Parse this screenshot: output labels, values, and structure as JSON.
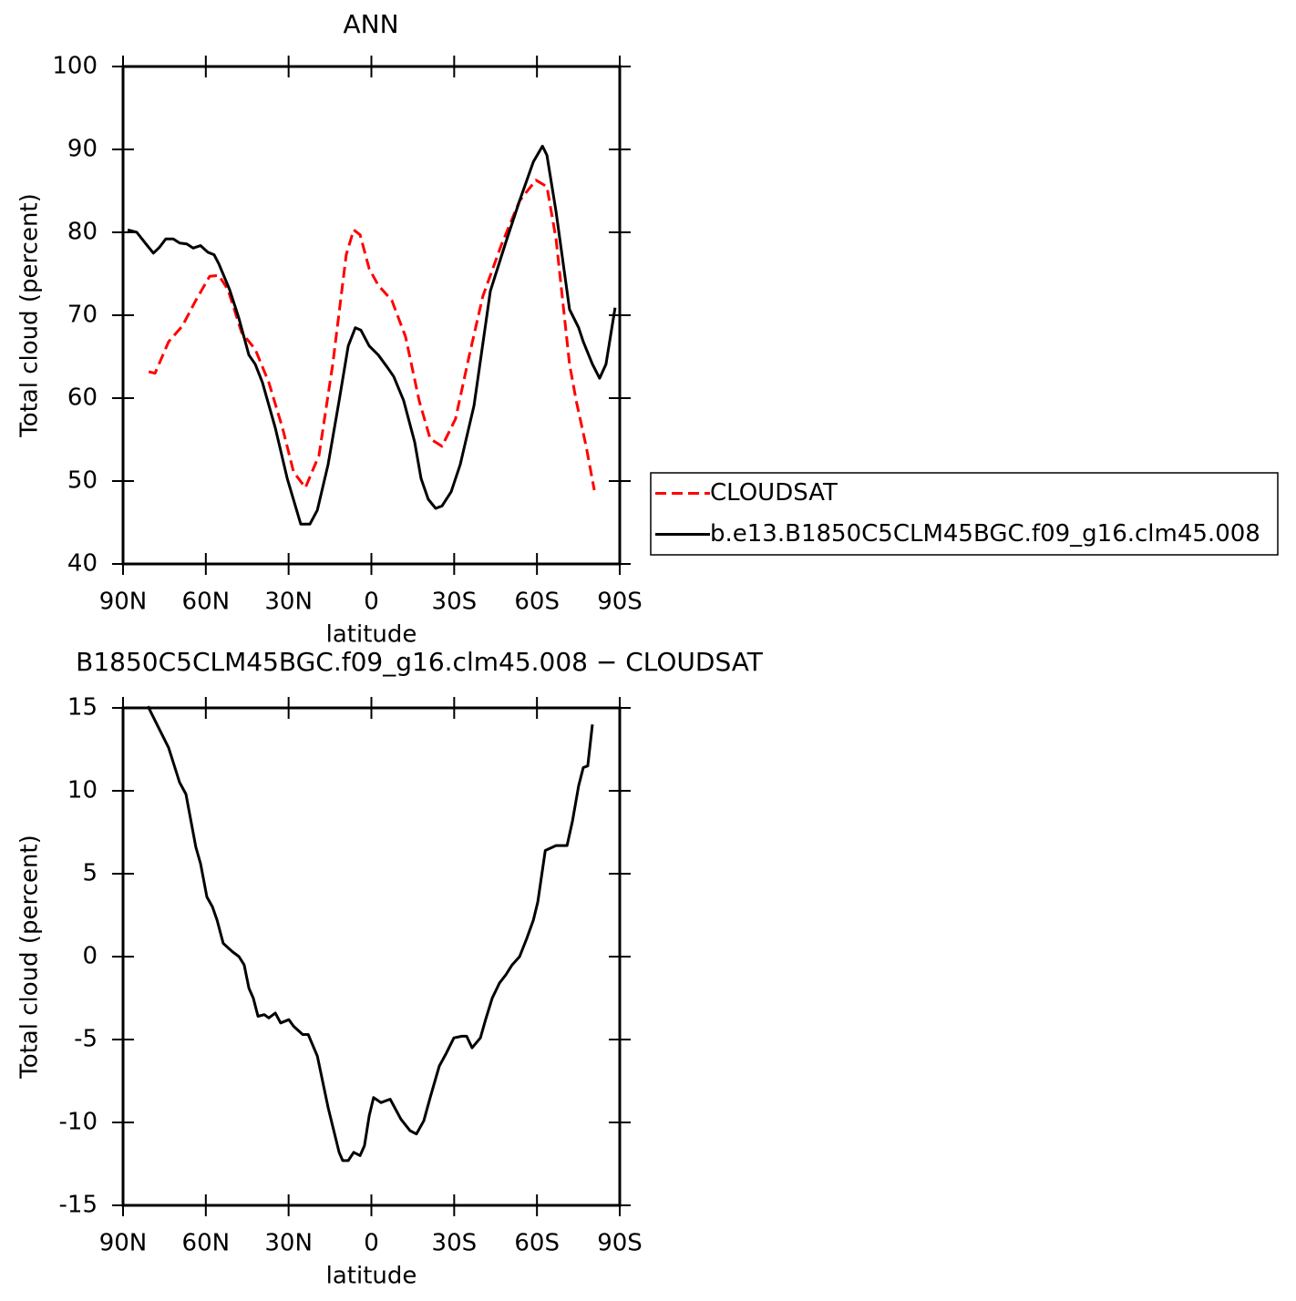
{
  "chart_data": [
    {
      "type": "line",
      "title": "ANN",
      "xlabel": "latitude",
      "ylabel": "Total cloud (percent)",
      "xlim": [
        90,
        -90
      ],
      "ylim": [
        40,
        100
      ],
      "xticks": [
        {
          "value": 90,
          "label": "90N"
        },
        {
          "value": 60,
          "label": "60N"
        },
        {
          "value": 30,
          "label": "30N"
        },
        0,
        {
          "value": -30,
          "label": "30S"
        },
        {
          "value": -60,
          "label": "60S"
        },
        {
          "value": -90,
          "label": "90S"
        }
      ],
      "yticks": [
        40,
        50,
        60,
        70,
        80,
        90,
        100
      ],
      "grid": false,
      "legend": "right",
      "series": [
        {
          "name": "CLOUDSAT",
          "color": "#ff0000",
          "style": "dashed",
          "x": [
            80.7,
            78.4,
            73.5,
            68.5,
            63.6,
            58.6,
            55.3,
            52,
            47,
            42.1,
            37.2,
            32.2,
            28.2,
            23.9,
            19,
            14,
            9.1,
            6.4,
            4.1,
            0.8,
            -2.5,
            -7.4,
            -12.4,
            -17.3,
            -21.3,
            -25.6,
            -30.5,
            -35.5,
            -40.4,
            -47,
            -53.7,
            -59.6,
            -63.6,
            -66.9,
            -71.8,
            -74.2,
            -77.8,
            -80.8
          ],
          "values": [
            63.2,
            63,
            66.8,
            68.7,
            71.8,
            74.7,
            74.8,
            73.1,
            67.9,
            65.9,
            61.9,
            56.4,
            51.1,
            49.2,
            53.1,
            64.1,
            77.3,
            80.3,
            79.7,
            75.6,
            73.6,
            71.8,
            67.4,
            59.7,
            55.1,
            54.2,
            57.5,
            65.2,
            72.3,
            78.4,
            83.8,
            86.3,
            85.5,
            79.2,
            64.1,
            59.7,
            54.2,
            48.9
          ]
        },
        {
          "name": "b.e13.B1850C5CLM45BGC.f09_g16.clm45.008",
          "color": "#000000",
          "style": "solid",
          "x": [
            88.3,
            85,
            81.7,
            79,
            76.8,
            74.5,
            71.8,
            69.5,
            66.9,
            64.6,
            61.9,
            59.3,
            57,
            55.3,
            51.4,
            48,
            44.4,
            42.1,
            39.5,
            34.8,
            30.5,
            25.6,
            22.3,
            19.6,
            15.7,
            11.7,
            8.4,
            5.8,
            3.8,
            0.8,
            -2.5,
            -5.8,
            -8.1,
            -11.7,
            -15.7,
            -18,
            -20.6,
            -23.3,
            -25.6,
            -28.9,
            -32.2,
            -37.2,
            -43.1,
            -48.8,
            -53.7,
            -58.7,
            -62,
            -63.6,
            -66.9,
            -71.8,
            -75.1,
            -76.8,
            -80.1,
            -82.7,
            -85,
            -88.3
          ],
          "values": [
            80.3,
            80,
            78.6,
            77.5,
            78.2,
            79.2,
            79.2,
            78.7,
            78.6,
            78.1,
            78.4,
            77.6,
            77.3,
            76.2,
            73.1,
            69.6,
            65.2,
            64.1,
            61.9,
            56.4,
            50.3,
            44.8,
            44.8,
            46.5,
            52,
            59.7,
            66.3,
            68.5,
            68.2,
            66.3,
            65.2,
            63.7,
            62.6,
            59.7,
            54.7,
            50.3,
            47.8,
            46.7,
            47,
            48.7,
            52,
            59.1,
            72.9,
            78.9,
            83.8,
            88.5,
            90.4,
            89.3,
            82.5,
            70.7,
            68.5,
            66.8,
            64.1,
            62.4,
            64.1,
            70.9
          ]
        }
      ]
    },
    {
      "type": "line",
      "title": "B1850C5CLM45BGC.f09_g16.clm45.008 − CLOUDSAT",
      "xlabel": "latitude",
      "ylabel": "Total cloud (percent)",
      "xlim": [
        90,
        -90
      ],
      "ylim": [
        -15,
        15
      ],
      "xticks": [
        {
          "value": 90,
          "label": "90N"
        },
        {
          "value": 60,
          "label": "60N"
        },
        {
          "value": 30,
          "label": "30N"
        },
        0,
        {
          "value": -30,
          "label": "30S"
        },
        {
          "value": -60,
          "label": "60S"
        },
        {
          "value": -90,
          "label": "90S"
        }
      ],
      "yticks": [
        -15,
        -10,
        -5,
        0,
        5,
        10,
        15
      ],
      "grid": false,
      "series": [
        {
          "color": "#000000",
          "style": "solid",
          "x": [
            81,
            76.8,
            73.5,
            69.5,
            67.2,
            63.6,
            61.9,
            59.6,
            57.6,
            55.9,
            53.7,
            50.4,
            48,
            46.1,
            44.4,
            42.8,
            41.1,
            38.8,
            37.2,
            34.8,
            32.9,
            29.9,
            28.2,
            24.9,
            22.9,
            19.6,
            15.7,
            11.7,
            10.4,
            8.4,
            6.4,
            4.1,
            2.5,
            0.8,
            -0.8,
            -3.5,
            -6.8,
            -10.7,
            -14,
            -16.3,
            -19,
            -21.3,
            -24.6,
            -27.2,
            -29.9,
            -32.8,
            -34.5,
            -36.5,
            -39.5,
            -41.4,
            -43.8,
            -46.4,
            -48.7,
            -51,
            -53.7,
            -56.3,
            -58.7,
            -60.3,
            -63,
            -66.9,
            -70.9,
            -72.9,
            -75.1,
            -76.8,
            -78.4,
            -80.1
          ],
          "values": [
            15.1,
            13.7,
            12.6,
            10.5,
            9.8,
            6.6,
            5.6,
            3.6,
            3.0,
            2.2,
            0.8,
            0.3,
            0,
            -0.5,
            -1.9,
            -2.5,
            -3.6,
            -3.5,
            -3.7,
            -3.4,
            -4.0,
            -3.8,
            -4.2,
            -4.7,
            -4.7,
            -6.0,
            -9.1,
            -11.8,
            -12.3,
            -12.3,
            -11.8,
            -12.0,
            -11.4,
            -9.6,
            -8.5,
            -8.8,
            -8.6,
            -9.8,
            -10.5,
            -10.7,
            -9.9,
            -8.5,
            -6.6,
            -5.8,
            -4.9,
            -4.8,
            -4.8,
            -5.5,
            -4.9,
            -3.8,
            -2.5,
            -1.6,
            -1.1,
            -0.5,
            0,
            1.1,
            2.2,
            3.3,
            6.4,
            6.7,
            6.7,
            8.2,
            10.3,
            11.4,
            11.5,
            14.0
          ]
        }
      ]
    }
  ]
}
